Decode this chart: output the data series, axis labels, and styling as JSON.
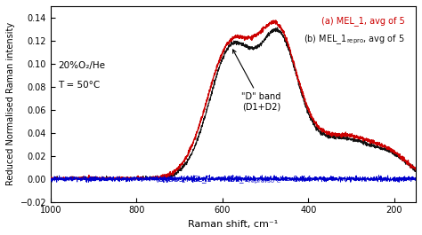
{
  "title": "",
  "xlabel": "Raman shift, cm⁻¹",
  "ylabel": "Reduced Normalised Raman intensity",
  "xlim": [
    1000,
    150
  ],
  "ylim": [
    -0.02,
    0.15
  ],
  "yticks": [
    -0.02,
    0.0,
    0.02,
    0.04,
    0.06,
    0.08,
    0.1,
    0.12,
    0.14
  ],
  "xticks": [
    1000,
    800,
    600,
    400,
    200
  ],
  "legend_a_color": "#cc0000",
  "legend_b_color": "#111111",
  "legend_c_color": "#0000cc",
  "annotation_text": "\"D\" band\n(D1+D2)",
  "condition_text1": "20%O₂/He",
  "condition_text2": "T = 50°C",
  "background_color": "#ffffff"
}
